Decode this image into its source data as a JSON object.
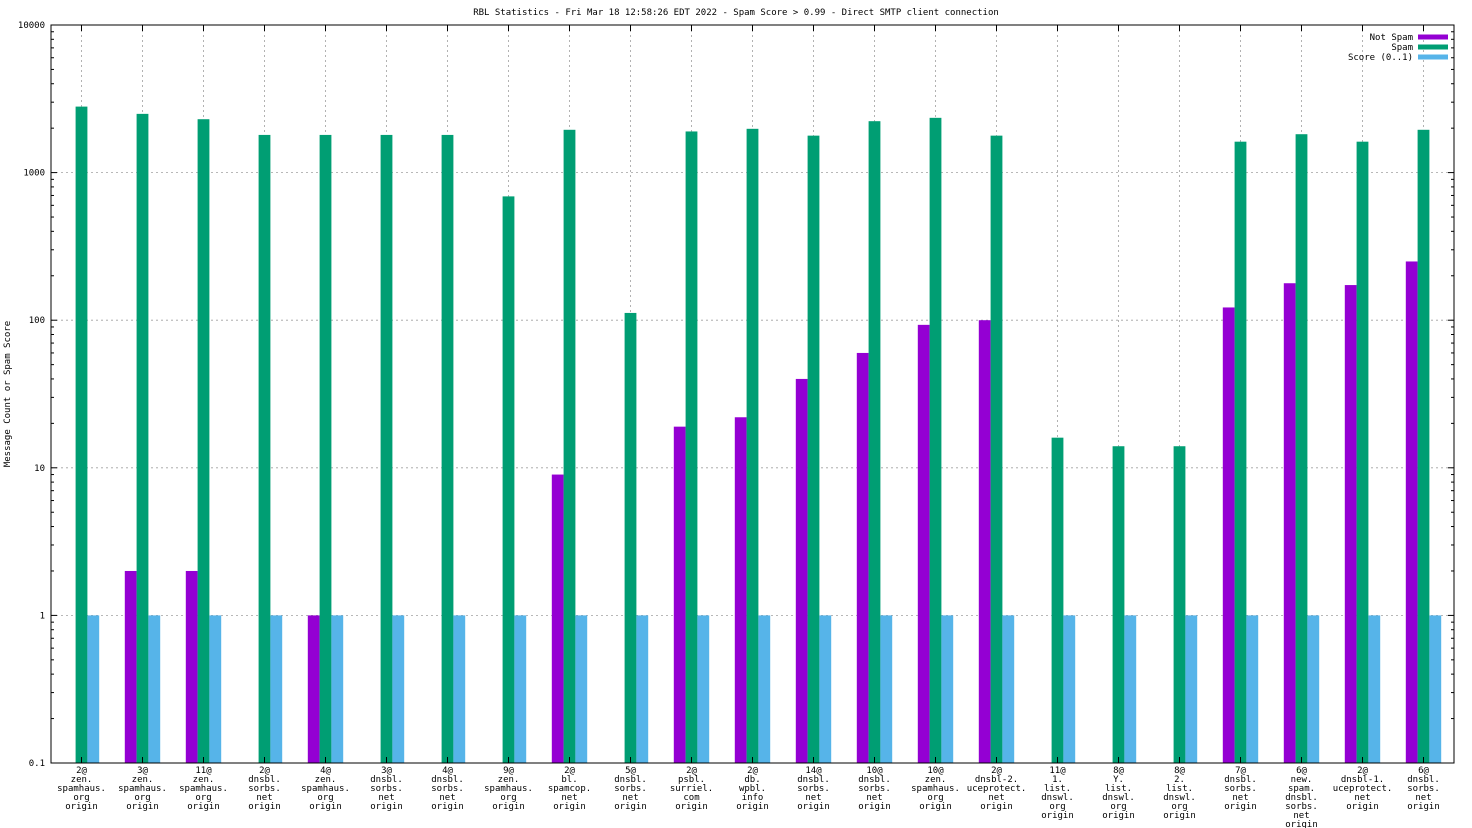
{
  "chart_data": {
    "type": "bar",
    "title": "RBL Statistics - Fri Mar 18 12:58:26 EDT 2022 - Spam Score > 0.99 - Direct SMTP client connection",
    "xlabel": "",
    "ylabel": "Message Count or Spam Score",
    "yscale": "log",
    "ylim": [
      0.1,
      10000
    ],
    "yticks": [
      "0.1",
      "1",
      "10",
      "100",
      "1000",
      "10000"
    ],
    "grid": true,
    "legend_position": "top-right",
    "categories": [
      [
        "2@",
        "zen.",
        "spamhaus.",
        "org",
        "origin"
      ],
      [
        "3@",
        "zen.",
        "spamhaus.",
        "org",
        "origin"
      ],
      [
        "11@",
        "zen.",
        "spamhaus.",
        "org",
        "origin"
      ],
      [
        "2@",
        "dnsbl.",
        "sorbs.",
        "net",
        "origin"
      ],
      [
        "4@",
        "zen.",
        "spamhaus.",
        "org",
        "origin"
      ],
      [
        "3@",
        "dnsbl.",
        "sorbs.",
        "net",
        "origin"
      ],
      [
        "4@",
        "dnsbl.",
        "sorbs.",
        "net",
        "origin"
      ],
      [
        "9@",
        "zen.",
        "spamhaus.",
        "org",
        "origin"
      ],
      [
        "2@",
        "bl.",
        "spamcop.",
        "net",
        "origin"
      ],
      [
        "5@",
        "dnsbl.",
        "sorbs.",
        "net",
        "origin"
      ],
      [
        "2@",
        "psbl.",
        "surriel.",
        "com",
        "origin"
      ],
      [
        "2@",
        "db.",
        "wpbl.",
        "info",
        "origin"
      ],
      [
        "14@",
        "dnsbl.",
        "sorbs.",
        "net",
        "origin"
      ],
      [
        "10@",
        "dnsbl.",
        "sorbs.",
        "net",
        "origin"
      ],
      [
        "10@",
        "zen.",
        "spamhaus.",
        "org",
        "origin"
      ],
      [
        "2@",
        "dnsbl-2.",
        "uceprotect.",
        "net",
        "origin"
      ],
      [
        "11@",
        "1.",
        "list.",
        "dnswl.",
        "org",
        "origin"
      ],
      [
        "8@",
        "Y.",
        "list.",
        "dnswl.",
        "org",
        "origin"
      ],
      [
        "8@",
        "2.",
        "list.",
        "dnswl.",
        "org",
        "origin"
      ],
      [
        "7@",
        "dnsbl.",
        "sorbs.",
        "net",
        "origin"
      ],
      [
        "6@",
        "new.",
        "spam.",
        "dnsbl.",
        "sorbs.",
        "net",
        "origin"
      ],
      [
        "2@",
        "dnsbl-1.",
        "uceprotect.",
        "net",
        "origin"
      ],
      [
        "6@",
        "dnsbl.",
        "sorbs.",
        "net",
        "origin"
      ]
    ],
    "series": [
      {
        "name": "Not Spam",
        "color": "#9400d3",
        "values": [
          0,
          2,
          2,
          0,
          1,
          0,
          0,
          0,
          9,
          0,
          19,
          22,
          40,
          60,
          93,
          100,
          0,
          0,
          0,
          122,
          178,
          173,
          250
        ]
      },
      {
        "name": "Spam",
        "color": "#009e73",
        "values": [
          2800,
          2500,
          2300,
          1800,
          1800,
          1800,
          1800,
          690,
          1950,
          112,
          1900,
          1980,
          1780,
          2230,
          2350,
          1780,
          16,
          14,
          14,
          1620,
          1820,
          1620,
          1950
        ]
      },
      {
        "name": "Score (0..1)",
        "color": "#56b4e9",
        "values": [
          1,
          1,
          1,
          1,
          1,
          1,
          1,
          1,
          1,
          1,
          1,
          1,
          1,
          1,
          1,
          1,
          1,
          1,
          1,
          1,
          1,
          1,
          1
        ]
      }
    ]
  }
}
